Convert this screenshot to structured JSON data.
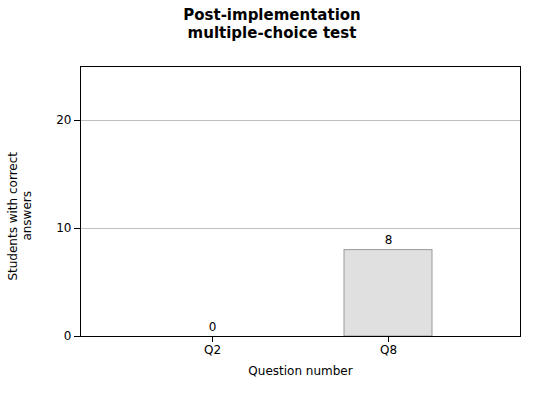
{
  "chart_data": {
    "type": "bar",
    "title": "Post-implementation\nmultiple-choice test",
    "xlabel": "Question number",
    "ylabel": "Students with correct\nanswers",
    "categories": [
      "Q2",
      "Q8"
    ],
    "values": [
      0,
      8
    ],
    "color": "#e0e0e0",
    "ylim": [
      0,
      25
    ],
    "yticks": [
      0,
      10,
      20
    ],
    "grid": true,
    "data_labels": true
  }
}
